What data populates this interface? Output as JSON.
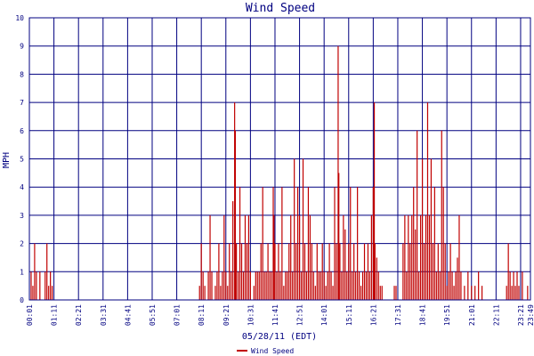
{
  "chart_data": {
    "type": "bar",
    "title": "Wind Speed",
    "xlabel": "05/28/11 (EDT)",
    "ylabel": "MPH",
    "ylim": [
      0,
      10
    ],
    "y_ticks": [
      "0",
      "1",
      "2",
      "3",
      "4",
      "5",
      "6",
      "7",
      "8",
      "9",
      "10"
    ],
    "x_ticks": [
      "00:01",
      "01:11",
      "02:21",
      "03:31",
      "04:41",
      "05:51",
      "07:01",
      "08:11",
      "09:21",
      "10:31",
      "11:41",
      "12:51",
      "14:01",
      "15:11",
      "16:21",
      "17:31",
      "18:41",
      "19:51",
      "21:01",
      "22:11",
      "23:21",
      "23:49"
    ],
    "grid": true,
    "legend_position": "bottom",
    "series": [
      {
        "name": "Wind Speed",
        "color": "#c00000",
        "points": [
          [
            "00:06",
            1
          ],
          [
            "00:11",
            0.5
          ],
          [
            "00:16",
            2
          ],
          [
            "00:21",
            1
          ],
          [
            "00:31",
            1
          ],
          [
            "00:46",
            1
          ],
          [
            "00:51",
            2
          ],
          [
            "00:56",
            0.5
          ],
          [
            "01:01",
            1
          ],
          [
            "01:06",
            0.5
          ],
          [
            "08:06",
            0.5
          ],
          [
            "08:11",
            2
          ],
          [
            "08:16",
            1
          ],
          [
            "08:21",
            0.5
          ],
          [
            "08:31",
            1
          ],
          [
            "08:36",
            3
          ],
          [
            "08:41",
            1
          ],
          [
            "08:51",
            0.5
          ],
          [
            "08:56",
            1
          ],
          [
            "09:01",
            2
          ],
          [
            "09:06",
            0.5
          ],
          [
            "09:11",
            1
          ],
          [
            "09:16",
            3
          ],
          [
            "09:21",
            1
          ],
          [
            "09:26",
            0.5
          ],
          [
            "09:31",
            2
          ],
          [
            "09:36",
            1
          ],
          [
            "09:41",
            3.5
          ],
          [
            "09:46",
            7
          ],
          [
            "09:48",
            6
          ],
          [
            "09:51",
            2
          ],
          [
            "09:56",
            1
          ],
          [
            "10:01",
            4
          ],
          [
            "10:06",
            2
          ],
          [
            "10:11",
            1
          ],
          [
            "10:16",
            3
          ],
          [
            "10:21",
            2
          ],
          [
            "10:26",
            3
          ],
          [
            "10:31",
            1
          ],
          [
            "10:41",
            0.5
          ],
          [
            "10:46",
            1
          ],
          [
            "10:51",
            1
          ],
          [
            "10:56",
            1
          ],
          [
            "11:01",
            2
          ],
          [
            "11:06",
            4
          ],
          [
            "11:11",
            1
          ],
          [
            "11:16",
            1
          ],
          [
            "11:21",
            2
          ],
          [
            "11:26",
            1
          ],
          [
            "11:31",
            1
          ],
          [
            "11:36",
            4
          ],
          [
            "11:38",
            3
          ],
          [
            "11:41",
            2
          ],
          [
            "11:46",
            1
          ],
          [
            "11:51",
            2
          ],
          [
            "11:56",
            1
          ],
          [
            "12:01",
            4
          ],
          [
            "12:06",
            0.5
          ],
          [
            "12:11",
            1
          ],
          [
            "12:16",
            1
          ],
          [
            "12:21",
            2
          ],
          [
            "12:26",
            3
          ],
          [
            "12:31",
            1
          ],
          [
            "12:36",
            5
          ],
          [
            "12:41",
            2
          ],
          [
            "12:46",
            4
          ],
          [
            "12:51",
            3
          ],
          [
            "12:56",
            1
          ],
          [
            "13:01",
            5
          ],
          [
            "13:06",
            2
          ],
          [
            "13:11",
            1
          ],
          [
            "13:16",
            4
          ],
          [
            "13:21",
            3
          ],
          [
            "13:26",
            2
          ],
          [
            "13:31",
            1
          ],
          [
            "13:36",
            0.5
          ],
          [
            "13:41",
            2
          ],
          [
            "13:46",
            1
          ],
          [
            "13:51",
            1
          ],
          [
            "13:56",
            2
          ],
          [
            "14:01",
            1
          ],
          [
            "14:06",
            0.5
          ],
          [
            "14:11",
            1
          ],
          [
            "14:16",
            2
          ],
          [
            "14:21",
            1
          ],
          [
            "14:26",
            0.5
          ],
          [
            "14:31",
            4
          ],
          [
            "14:36",
            2
          ],
          [
            "14:41",
            9
          ],
          [
            "14:43",
            4.5
          ],
          [
            "14:46",
            2
          ],
          [
            "14:51",
            1
          ],
          [
            "14:56",
            3
          ],
          [
            "15:01",
            2.5
          ],
          [
            "15:06",
            1
          ],
          [
            "15:11",
            2
          ],
          [
            "15:16",
            4
          ],
          [
            "15:21",
            1
          ],
          [
            "15:26",
            2
          ],
          [
            "15:31",
            1
          ],
          [
            "15:36",
            4
          ],
          [
            "15:41",
            1
          ],
          [
            "15:46",
            0.5
          ],
          [
            "15:51",
            1
          ],
          [
            "15:56",
            2
          ],
          [
            "16:01",
            1
          ],
          [
            "16:06",
            2
          ],
          [
            "16:11",
            1
          ],
          [
            "16:16",
            3
          ],
          [
            "16:21",
            4
          ],
          [
            "16:24",
            7
          ],
          [
            "16:26",
            2
          ],
          [
            "16:31",
            1.5
          ],
          [
            "16:36",
            1
          ],
          [
            "16:41",
            0.5
          ],
          [
            "16:46",
            0.5
          ],
          [
            "17:21",
            0.5
          ],
          [
            "17:26",
            0.5
          ],
          [
            "17:46",
            2
          ],
          [
            "17:51",
            3
          ],
          [
            "17:56",
            1
          ],
          [
            "18:01",
            3
          ],
          [
            "18:06",
            2
          ],
          [
            "18:11",
            3
          ],
          [
            "18:16",
            4
          ],
          [
            "18:21",
            2.5
          ],
          [
            "18:26",
            6
          ],
          [
            "18:31",
            1
          ],
          [
            "18:36",
            3
          ],
          [
            "18:41",
            5
          ],
          [
            "18:46",
            2
          ],
          [
            "18:51",
            3
          ],
          [
            "18:56",
            7
          ],
          [
            "19:01",
            3
          ],
          [
            "19:06",
            5
          ],
          [
            "19:11",
            2
          ],
          [
            "19:16",
            4
          ],
          [
            "19:21",
            1
          ],
          [
            "19:26",
            2
          ],
          [
            "19:31",
            1
          ],
          [
            "19:36",
            6
          ],
          [
            "19:41",
            4
          ],
          [
            "19:46",
            2
          ],
          [
            "19:51",
            0.5
          ],
          [
            "19:56",
            1
          ],
          [
            "20:01",
            2
          ],
          [
            "20:06",
            1
          ],
          [
            "20:11",
            0.5
          ],
          [
            "20:16",
            1
          ],
          [
            "20:21",
            1.5
          ],
          [
            "20:26",
            3
          ],
          [
            "20:31",
            1
          ],
          [
            "20:41",
            0.5
          ],
          [
            "20:51",
            1
          ],
          [
            "21:01",
            0.5
          ],
          [
            "21:11",
            0.5
          ],
          [
            "21:21",
            1
          ],
          [
            "21:31",
            0.5
          ],
          [
            "22:41",
            0.5
          ],
          [
            "22:46",
            2
          ],
          [
            "22:51",
            1
          ],
          [
            "22:56",
            0.5
          ],
          [
            "23:01",
            1
          ],
          [
            "23:06",
            0.5
          ],
          [
            "23:11",
            1
          ],
          [
            "23:16",
            0.5
          ],
          [
            "23:26",
            1
          ],
          [
            "23:41",
            0.5
          ]
        ]
      }
    ]
  }
}
